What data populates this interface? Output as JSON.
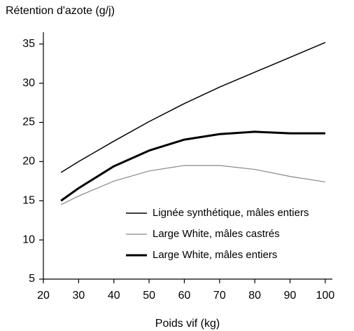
{
  "chart_data": {
    "type": "line",
    "ylabel": "Rétention d'azote (g/j)",
    "xlabel": "Poids vif (kg)",
    "x": [
      25,
      30,
      40,
      50,
      60,
      70,
      80,
      90,
      100
    ],
    "series": [
      {
        "name": "Lignée synthétique, mâles entiers",
        "color": "#000000",
        "line_width": 1.5,
        "values": [
          18.6,
          20,
          22.6,
          25.1,
          27.4,
          29.5,
          31.4,
          33.3,
          35.2
        ]
      },
      {
        "name": "Large White, mâles castrés",
        "color": "#888888",
        "line_width": 1.2,
        "values": [
          14.5,
          15.6,
          17.5,
          18.8,
          19.5,
          19.5,
          19.0,
          18.1,
          17.4
        ]
      },
      {
        "name": "Large White, mâles entiers",
        "color": "#000000",
        "line_width": 3,
        "values": [
          15.0,
          16.6,
          19.4,
          21.4,
          22.8,
          23.5,
          23.8,
          23.6,
          23.6
        ]
      }
    ],
    "xlim": [
      20,
      102
    ],
    "xticks": [
      20,
      30,
      40,
      50,
      60,
      70,
      80,
      90,
      100
    ],
    "ylim": [
      5,
      36.5
    ],
    "yticks": [
      5,
      10,
      15,
      20,
      25,
      30,
      35
    ],
    "legend": "lower right",
    "grid": false
  }
}
